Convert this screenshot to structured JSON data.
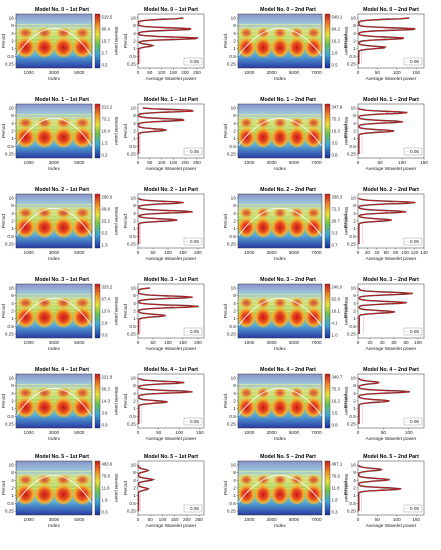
{
  "figure": {
    "period_ticks": [
      "16",
      "8",
      "4",
      "2",
      "1",
      "0.5",
      "0.25"
    ],
    "index_ticks": [
      "1000",
      "3000",
      "5000",
      "7000"
    ],
    "colorbar_label": "Wavelet power",
    "ylabel": "Period",
    "xlabel_spectrum": "Index",
    "xlabel_avg": "Average Wavelet power",
    "significance_label": "0.05"
  },
  "chart_data": [
    {
      "type": "heatmap",
      "title": "Model No. 0 – 1st Part",
      "colorbar": [
        "519.5",
        "90.4",
        "15.7",
        "2.7",
        "0.5"
      ],
      "xticks": [
        "1000",
        "3000",
        "5000"
      ],
      "ylabel": "Period",
      "xlabel": "Index"
    },
    {
      "type": "line",
      "title": "Model No. 0 – 1st Part",
      "xticks": [
        "0",
        "50",
        "100",
        "150",
        "200",
        "250"
      ],
      "xlim": [
        0,
        280
      ],
      "xlabel": "Average Wavelet power",
      "legend": "0.05",
      "series": [
        {
          "peaks": [
            [
              2,
              190
            ],
            [
              3.2,
              230
            ],
            [
              4.2,
              260
            ],
            [
              5,
              60
            ]
          ]
        }
      ]
    },
    {
      "type": "heatmap",
      "title": "Model No. 0 – 2nd Part",
      "colorbar": [
        "549.1",
        "94.2",
        "16.2",
        "2.8",
        "0.5"
      ],
      "xticks": [
        "1000",
        "3000",
        "5000",
        "7000"
      ],
      "ylabel": "Period",
      "xlabel": "Index"
    },
    {
      "type": "line",
      "title": "Model No. 0 – 2nd Part",
      "xticks": [
        "0",
        "50",
        "100",
        "150"
      ],
      "xlim": [
        0,
        170
      ],
      "xlabel": "Average Wavelet power",
      "legend": "0.05",
      "series": [
        {
          "peaks": [
            [
              2,
              130
            ],
            [
              3.2,
              150
            ],
            [
              4.2,
              120
            ],
            [
              5.2,
              70
            ]
          ]
        }
      ]
    },
    {
      "type": "heatmap",
      "title": "Model No. 1 – 1st Part",
      "colorbar": [
        "513.2",
        "73.2",
        "10.4",
        "1.5",
        "0.2"
      ],
      "xticks": [
        "1000",
        "3000",
        "5000"
      ],
      "ylabel": "Period",
      "xlabel": "Index"
    },
    {
      "type": "line",
      "title": "Model No. 1 – 1st Part",
      "xticks": [
        "0",
        "50",
        "100",
        "150",
        "200",
        "250"
      ],
      "xlim": [
        0,
        280
      ],
      "xlabel": "Average Wavelet power",
      "legend": "0.05",
      "series": [
        {
          "peaks": [
            [
              1.5,
              150
            ],
            [
              2.3,
              240
            ],
            [
              3.3,
              200
            ],
            [
              4.4,
              120
            ]
          ]
        }
      ]
    },
    {
      "type": "heatmap",
      "title": "Model No. 1 – 2nd Part",
      "colorbar": [
        "347.9",
        "75.3",
        "16.3",
        "3.5",
        "0.8"
      ],
      "xticks": [
        "1000",
        "3000",
        "5000",
        "7000"
      ],
      "ylabel": "Period",
      "xlabel": "Index"
    },
    {
      "type": "line",
      "title": "Model No. 1 – 2nd Part",
      "xticks": [
        "0",
        "50",
        "100",
        "150"
      ],
      "xlim": [
        0,
        150
      ],
      "xlabel": "Average Wavelet power",
      "legend": "0.05",
      "series": [
        {
          "peaks": [
            [
              1.5,
              120
            ],
            [
              2.5,
              110
            ],
            [
              3.5,
              100
            ],
            [
              4.5,
              80
            ]
          ]
        }
      ]
    },
    {
      "type": "heatmap",
      "title": "Model No. 2 – 1st Part",
      "colorbar": [
        "296.6",
        "69.8",
        "23.2",
        "5.5",
        "1.3"
      ],
      "xticks": [
        "1000",
        "3000",
        "5000"
      ],
      "ylabel": "Period",
      "xlabel": "Index"
    },
    {
      "type": "line",
      "title": "Model No. 2 – 1st Part",
      "xticks": [
        "0",
        "50",
        "100",
        "150",
        "200"
      ],
      "xlim": [
        0,
        220
      ],
      "xlabel": "Average Wavelet power",
      "legend": "0.05",
      "series": [
        {
          "peaks": [
            [
              1.6,
              120
            ],
            [
              2.5,
              150
            ],
            [
              3.5,
              180
            ],
            [
              4.4,
              130
            ]
          ]
        }
      ]
    },
    {
      "type": "heatmap",
      "title": "Model No. 2 – 2nd Part",
      "colorbar": [
        "338.3",
        "72.3",
        "26.7",
        "3.3",
        "0.7"
      ],
      "xticks": [
        "1000",
        "3000",
        "5000",
        "7000"
      ],
      "ylabel": "Period",
      "xlabel": "Index"
    },
    {
      "type": "line",
      "title": "Model No. 2 – 2nd Part",
      "xticks": [
        "0",
        "20",
        "40",
        "60",
        "80",
        "100",
        "120",
        "140"
      ],
      "xlim": [
        0,
        140
      ],
      "xlabel": "Average Wavelet power",
      "legend": "0.05",
      "series": [
        {
          "peaks": [
            [
              1.6,
              90
            ],
            [
              2.5,
              120
            ],
            [
              3.5,
              100
            ],
            [
              4.4,
              70
            ]
          ]
        }
      ]
    },
    {
      "type": "heatmap",
      "title": "Model No. 3 – 1st Part",
      "colorbar": [
        "333.2",
        "67.4",
        "13.6",
        "2.8",
        "0.6"
      ],
      "xticks": [
        "1000",
        "3000",
        "5000"
      ],
      "ylabel": "Period",
      "xlabel": "Index"
    },
    {
      "type": "line",
      "title": "Model No. 3 – 1st Part",
      "xticks": [
        "0",
        "50",
        "100",
        "150",
        "200"
      ],
      "xlim": [
        0,
        220
      ],
      "xlabel": "Average Wavelet power",
      "legend": "0.05",
      "series": [
        {
          "peaks": [
            [
              1.8,
              120
            ],
            [
              3,
              180
            ],
            [
              4,
              200
            ],
            [
              5,
              90
            ]
          ]
        }
      ]
    },
    {
      "type": "heatmap",
      "title": "Model No. 3 – 2nd Part",
      "colorbar": [
        "246.0",
        "62.9",
        "16.1",
        "4.1",
        "1.0"
      ],
      "xticks": [
        "1000",
        "3000",
        "5000",
        "7000"
      ],
      "ylabel": "Period",
      "xlabel": "Index"
    },
    {
      "type": "line",
      "title": "Model No. 3 – 2nd Part",
      "xticks": [
        "0",
        "20",
        "40",
        "60",
        "80",
        "100"
      ],
      "xlim": [
        0,
        110
      ],
      "xlabel": "Average Wavelet power",
      "legend": "0.05",
      "series": [
        {
          "peaks": [
            [
              1.6,
              70
            ],
            [
              2.6,
              90
            ],
            [
              3.6,
              80
            ],
            [
              4.6,
              60
            ]
          ]
        }
      ]
    },
    {
      "type": "heatmap",
      "title": "Model No. 4 – 1st Part",
      "colorbar": [
        "221.9",
        "56.3",
        "14.3",
        "3.6",
        "0.9"
      ],
      "xticks": [
        "1000",
        "3000",
        "5000"
      ],
      "ylabel": "Period",
      "xlabel": "Index"
    },
    {
      "type": "line",
      "title": "Model No. 4 – 1st Part",
      "xticks": [
        "0",
        "50",
        "100",
        "150"
      ],
      "xlim": [
        0,
        160
      ],
      "xlabel": "Average Wavelet power",
      "legend": "0.05",
      "series": [
        {
          "peaks": [
            [
              1.6,
              60
            ],
            [
              2.5,
              110
            ],
            [
              3.5,
              130
            ],
            [
              4.6,
              70
            ]
          ]
        }
      ]
    },
    {
      "type": "heatmap",
      "title": "Model No. 4 – 2nd Part",
      "colorbar": [
        "349.7",
        "75.3",
        "16.2",
        "3.5",
        "0.8"
      ],
      "xticks": [
        "1000",
        "3000",
        "5000",
        "7000"
      ],
      "ylabel": "Period",
      "xlabel": "Index"
    },
    {
      "type": "line",
      "title": "Model No. 4 – 2nd Part",
      "xticks": [
        "0",
        "50",
        "100"
      ],
      "xlim": [
        0,
        130
      ],
      "xlabel": "Average Wavelet power",
      "legend": "0.05",
      "series": [
        {
          "peaks": [
            [
              2.5,
              40
            ],
            [
              3.5,
              100
            ],
            [
              4.5,
              60
            ]
          ]
        }
      ]
    },
    {
      "type": "heatmap",
      "title": "Model No. 5 – 1st Part",
      "colorbar": [
        "493.6",
        "75.8",
        "11.6",
        "1.8",
        "0.3"
      ],
      "xticks": [
        "1000",
        "3000",
        "5000"
      ],
      "ylabel": "Period",
      "xlabel": "Index"
    },
    {
      "type": "line",
      "title": "Model No. 5 – 1st Part",
      "xticks": [
        "0",
        "50",
        "100",
        "150",
        "200",
        "250"
      ],
      "xlim": [
        0,
        270
      ],
      "xlabel": "Average Wavelet power",
      "legend": "0.05",
      "series": [
        {
          "peaks": [
            [
              1.4,
              60
            ],
            [
              2.6,
              40
            ],
            [
              3.6,
              60
            ],
            [
              4.6,
              40
            ]
          ]
        }
      ]
    },
    {
      "type": "heatmap",
      "title": "Model No. 5 – 2nd Part",
      "colorbar": [
        "497.1",
        "76.6",
        "11.8",
        "1.8",
        "0.3"
      ],
      "xticks": [
        "1000",
        "3000",
        "5000",
        "7000"
      ],
      "ylabel": "Period",
      "xlabel": "Index"
    },
    {
      "type": "line",
      "title": "Model No. 5 – 2nd Part",
      "xticks": [
        "0",
        "50",
        "100",
        "150"
      ],
      "xlim": [
        0,
        170
      ],
      "xlabel": "Average Wavelet power",
      "legend": "0.05",
      "series": [
        {
          "peaks": [
            [
              1.4,
              60
            ],
            [
              2.5,
              60
            ],
            [
              3.6,
              80
            ],
            [
              4.6,
              110
            ]
          ]
        }
      ]
    }
  ]
}
